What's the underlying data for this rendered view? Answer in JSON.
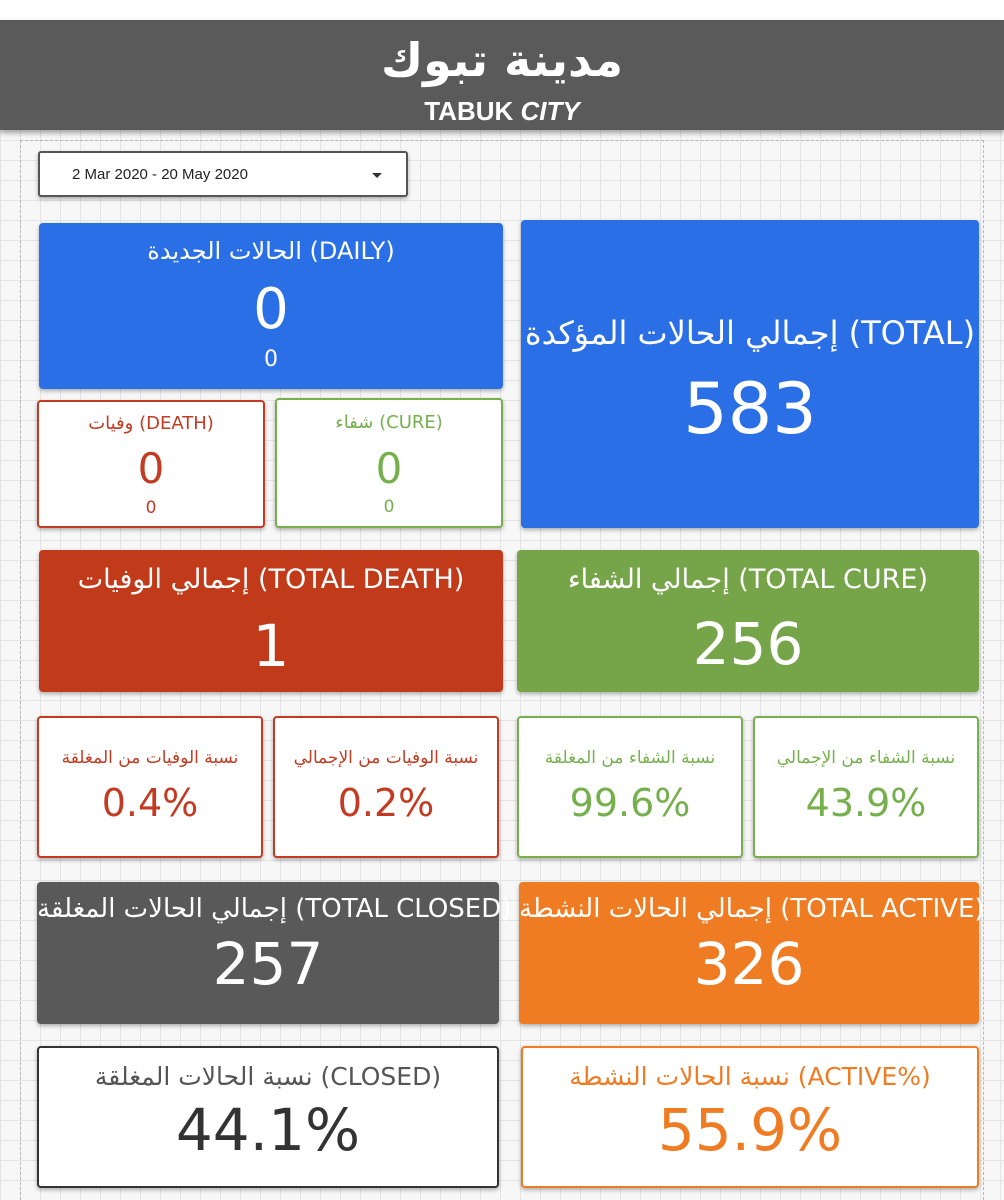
{
  "header": {
    "title_ar": "مدينة تبوك",
    "title_en": "TABUK",
    "title_en_italic": "CITY"
  },
  "date_range": {
    "value": "2 Mar 2020 - 20 May 2020"
  },
  "cards": {
    "daily_new": {
      "label": "الحالات الجديدة (DAILY)",
      "value": "0",
      "sub": "0"
    },
    "total_confirmed": {
      "label": "إجمالي الحالات المؤكدة (TOTAL)",
      "value": "583"
    },
    "daily_death": {
      "label": "وفيات (DEATH)",
      "value": "0",
      "sub": "0"
    },
    "daily_cure": {
      "label": "شفاء (CURE)",
      "value": "0",
      "sub": "0"
    },
    "total_death": {
      "label": "إجمالي الوفيات (TOTAL DEATH)",
      "value": "1"
    },
    "total_cure": {
      "label": "إجمالي الشفاء (TOTAL CURE)",
      "value": "256"
    },
    "death_rate_closed": {
      "label": "نسبة الوفيات من المغلقة",
      "value": "0.4%"
    },
    "death_rate_total": {
      "label": "نسبة الوفيات من الإجمالي",
      "value": "0.2%"
    },
    "cure_rate_closed": {
      "label": "نسبة الشفاء من المغلقة",
      "value": "99.6%"
    },
    "cure_rate_total": {
      "label": "نسبة الشفاء من الإجمالي",
      "value": "43.9%"
    },
    "total_closed": {
      "label": "إجمالي الحالات المغلقة (TOTAL CLOSED)",
      "value": "257"
    },
    "total_active": {
      "label": "إجمالي الحالات النشطة (TOTAL ACTIVE)",
      "value": "326"
    },
    "closed_pct": {
      "label": "نسبة الحالات المغلقة (CLOSED)",
      "value": "44.1%"
    },
    "active_pct": {
      "label": "نسبة الحالات النشطة (ACTIVE%)",
      "value": "55.9%"
    }
  },
  "colors": {
    "blue": "#2a6fe6",
    "red": "#c13a1a",
    "green": "#76a448",
    "gray": "#595959",
    "orange": "#ef7b22",
    "header": "#5a5a5a"
  }
}
